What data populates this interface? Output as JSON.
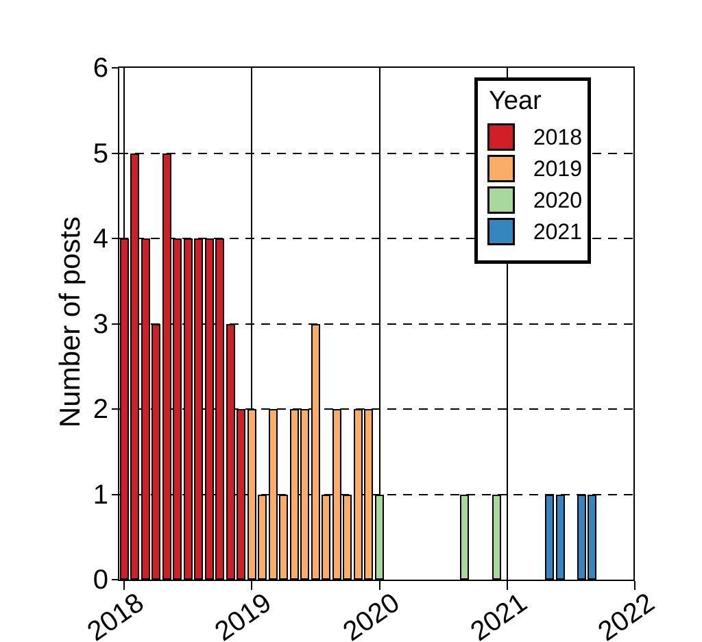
{
  "chart_data": {
    "type": "bar",
    "title": "",
    "xlabel": "",
    "ylabel": "Number of posts",
    "ylim": [
      0,
      6
    ],
    "yticks": [
      "0",
      "1",
      "2",
      "3",
      "4",
      "5",
      "6"
    ],
    "xticks": [
      "2018",
      "2019",
      "2020",
      "2021",
      "2022"
    ],
    "x_resolution": "month",
    "grid": {
      "horizontal": "dashed black lines at y = 1,2,3,4,5",
      "vertical": "solid black lines at each year tick"
    },
    "legend": {
      "title": "Year",
      "position": "top-right",
      "entries": [
        {
          "label": "2018",
          "color": "#d01f27"
        },
        {
          "label": "2019",
          "color": "#f9ad66"
        },
        {
          "label": "2020",
          "color": "#a8d89b"
        },
        {
          "label": "2021",
          "color": "#3585bf"
        }
      ]
    },
    "series": [
      {
        "name": "2018",
        "color": "#d01f27",
        "monthly_values": [
          4,
          5,
          4,
          3,
          5,
          4,
          4,
          4,
          4,
          4,
          3,
          2
        ]
      },
      {
        "name": "2019",
        "color": "#f9ad66",
        "monthly_values": [
          2,
          1,
          2,
          1,
          2,
          2,
          3,
          1,
          2,
          1,
          2,
          2
        ]
      },
      {
        "name": "2020",
        "color": "#a8d89b",
        "monthly_values": [
          1,
          0,
          0,
          0,
          0,
          0,
          0,
          0,
          1,
          0,
          0,
          1
        ]
      },
      {
        "name": "2021",
        "color": "#3585bf",
        "monthly_values": [
          0,
          0,
          0,
          0,
          1,
          1,
          0,
          1,
          1,
          0,
          0,
          0
        ]
      }
    ]
  }
}
